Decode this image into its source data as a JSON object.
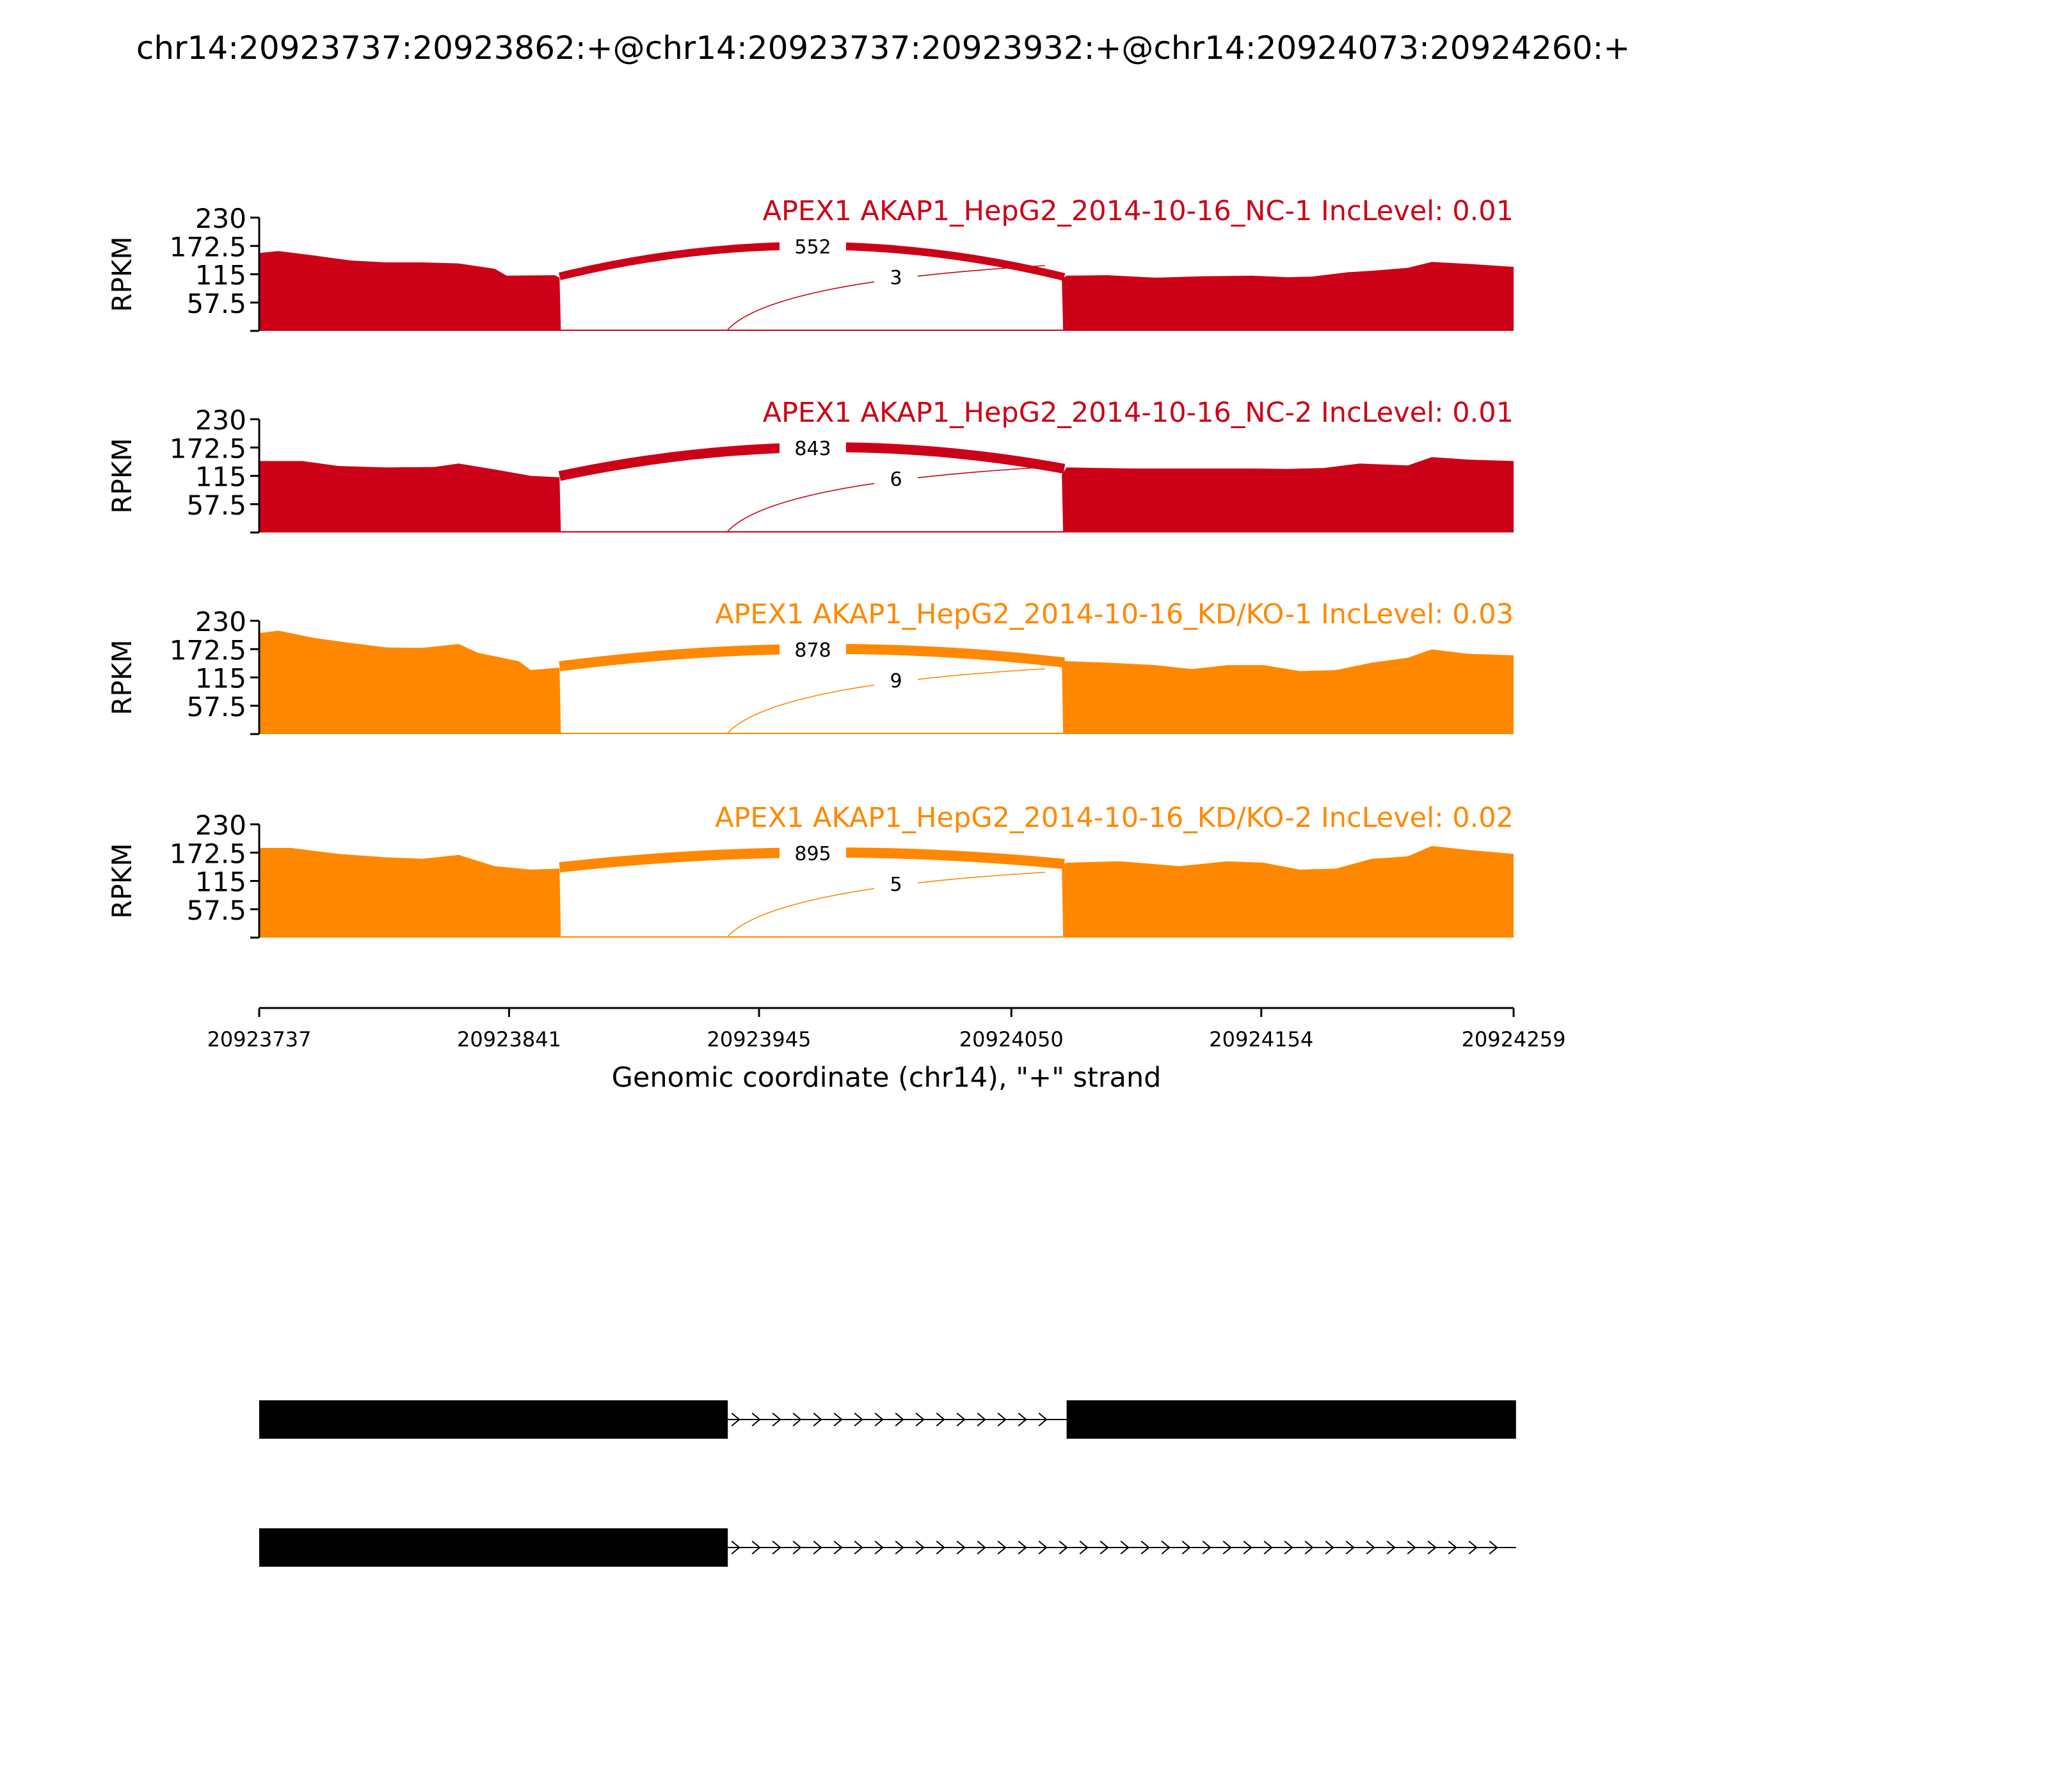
{
  "title": "chr14:20923737:20923862:+@chr14:20923737:20923932:+@chr14:20924073:20924260:+",
  "colors": {
    "nc": "#cc0017",
    "kd": "#ff8800",
    "axis": "#000000",
    "exon": "#000000"
  },
  "chart_data": {
    "type": "area",
    "ylabel": "RPKM",
    "yticks": [
      "230",
      "172.5",
      "115",
      "57.5"
    ],
    "ylim": [
      0,
      230
    ],
    "xticks": [
      "20923737",
      "20923841",
      "20923945",
      "20924050",
      "20924154",
      "20924259"
    ],
    "xlim": [
      20923737,
      20924259
    ],
    "xlabel": "Genomic coordinate (chr14), \"+\" strand",
    "tracks": [
      {
        "label": "APEX1 AKAP1_HepG2_2014-10-16_NC-1 IncLevel: 0.01",
        "color_key": "nc",
        "coverage": [
          [
            20923737,
            158
          ],
          [
            20923745,
            162
          ],
          [
            20923760,
            153
          ],
          [
            20923775,
            143
          ],
          [
            20923790,
            139
          ],
          [
            20923805,
            139
          ],
          [
            20923820,
            137
          ],
          [
            20923835,
            126
          ],
          [
            20923840,
            112
          ],
          [
            20923860,
            113
          ],
          [
            20923862,
            108
          ],
          [
            20924071,
            105
          ],
          [
            20924073,
            112
          ],
          [
            20924090,
            113
          ],
          [
            20924110,
            108
          ],
          [
            20924130,
            111
          ],
          [
            20924150,
            112
          ],
          [
            20924165,
            109
          ],
          [
            20924175,
            110
          ],
          [
            20924190,
            119
          ],
          [
            20924200,
            122
          ],
          [
            20924215,
            128
          ],
          [
            20924225,
            140
          ],
          [
            20924240,
            136
          ],
          [
            20924259,
            130
          ]
        ],
        "junctions": [
          {
            "label": "552",
            "value": 552
          },
          {
            "label": "3",
            "value": 3
          }
        ]
      },
      {
        "label": "APEX1 AKAP1_HepG2_2014-10-16_NC-2 IncLevel: 0.01",
        "color_key": "nc",
        "coverage": [
          [
            20923737,
            145
          ],
          [
            20923755,
            145
          ],
          [
            20923770,
            135
          ],
          [
            20923790,
            132
          ],
          [
            20923810,
            133
          ],
          [
            20923820,
            140
          ],
          [
            20923835,
            128
          ],
          [
            20923850,
            115
          ],
          [
            20923862,
            112
          ],
          [
            20924071,
            117
          ],
          [
            20924073,
            132
          ],
          [
            20924100,
            130
          ],
          [
            20924130,
            130
          ],
          [
            20924150,
            130
          ],
          [
            20924165,
            129
          ],
          [
            20924180,
            131
          ],
          [
            20924195,
            140
          ],
          [
            20924215,
            136
          ],
          [
            20924225,
            153
          ],
          [
            20924240,
            148
          ],
          [
            20924259,
            145
          ]
        ],
        "junctions": [
          {
            "label": "843",
            "value": 843
          },
          {
            "label": "6",
            "value": 6
          }
        ]
      },
      {
        "label": "APEX1 AKAP1_HepG2_2014-10-16_KD/KO-1 IncLevel: 0.03",
        "color_key": "kd",
        "coverage": [
          [
            20923737,
            205
          ],
          [
            20923745,
            210
          ],
          [
            20923760,
            195
          ],
          [
            20923775,
            185
          ],
          [
            20923790,
            176
          ],
          [
            20923805,
            175
          ],
          [
            20923820,
            183
          ],
          [
            20923828,
            165
          ],
          [
            20923845,
            148
          ],
          [
            20923850,
            130
          ],
          [
            20923862,
            135
          ],
          [
            20924071,
            150
          ],
          [
            20924073,
            148
          ],
          [
            20924090,
            145
          ],
          [
            20924110,
            140
          ],
          [
            20924125,
            132
          ],
          [
            20924140,
            140
          ],
          [
            20924155,
            140
          ],
          [
            20924170,
            128
          ],
          [
            20924185,
            130
          ],
          [
            20924200,
            145
          ],
          [
            20924215,
            155
          ],
          [
            20924225,
            172
          ],
          [
            20924240,
            163
          ],
          [
            20924259,
            160
          ]
        ],
        "junctions": [
          {
            "label": "878",
            "value": 878
          },
          {
            "label": "9",
            "value": 9
          }
        ]
      },
      {
        "label": "APEX1 AKAP1_HepG2_2014-10-16_KD/KO-2 IncLevel: 0.02",
        "color_key": "kd",
        "coverage": [
          [
            20923737,
            182
          ],
          [
            20923750,
            182
          ],
          [
            20923770,
            170
          ],
          [
            20923790,
            163
          ],
          [
            20923805,
            160
          ],
          [
            20923820,
            168
          ],
          [
            20923835,
            145
          ],
          [
            20923850,
            138
          ],
          [
            20923862,
            140
          ],
          [
            20924071,
            148
          ],
          [
            20924073,
            152
          ],
          [
            20924095,
            155
          ],
          [
            20924120,
            145
          ],
          [
            20924140,
            155
          ],
          [
            20924155,
            152
          ],
          [
            20924170,
            138
          ],
          [
            20924185,
            140
          ],
          [
            20924200,
            160
          ],
          [
            20924215,
            165
          ],
          [
            20924225,
            186
          ],
          [
            20924240,
            178
          ],
          [
            20924259,
            170
          ]
        ],
        "junctions": [
          {
            "label": "895",
            "value": 895
          },
          {
            "label": "5",
            "value": 5
          }
        ]
      }
    ],
    "gene_models": [
      {
        "exons": [
          [
            20923737,
            20923932
          ],
          [
            20924073,
            20924260
          ]
        ]
      },
      {
        "exons": [
          [
            20923737,
            20923932
          ]
        ],
        "intron_end": 20924260
      }
    ]
  }
}
